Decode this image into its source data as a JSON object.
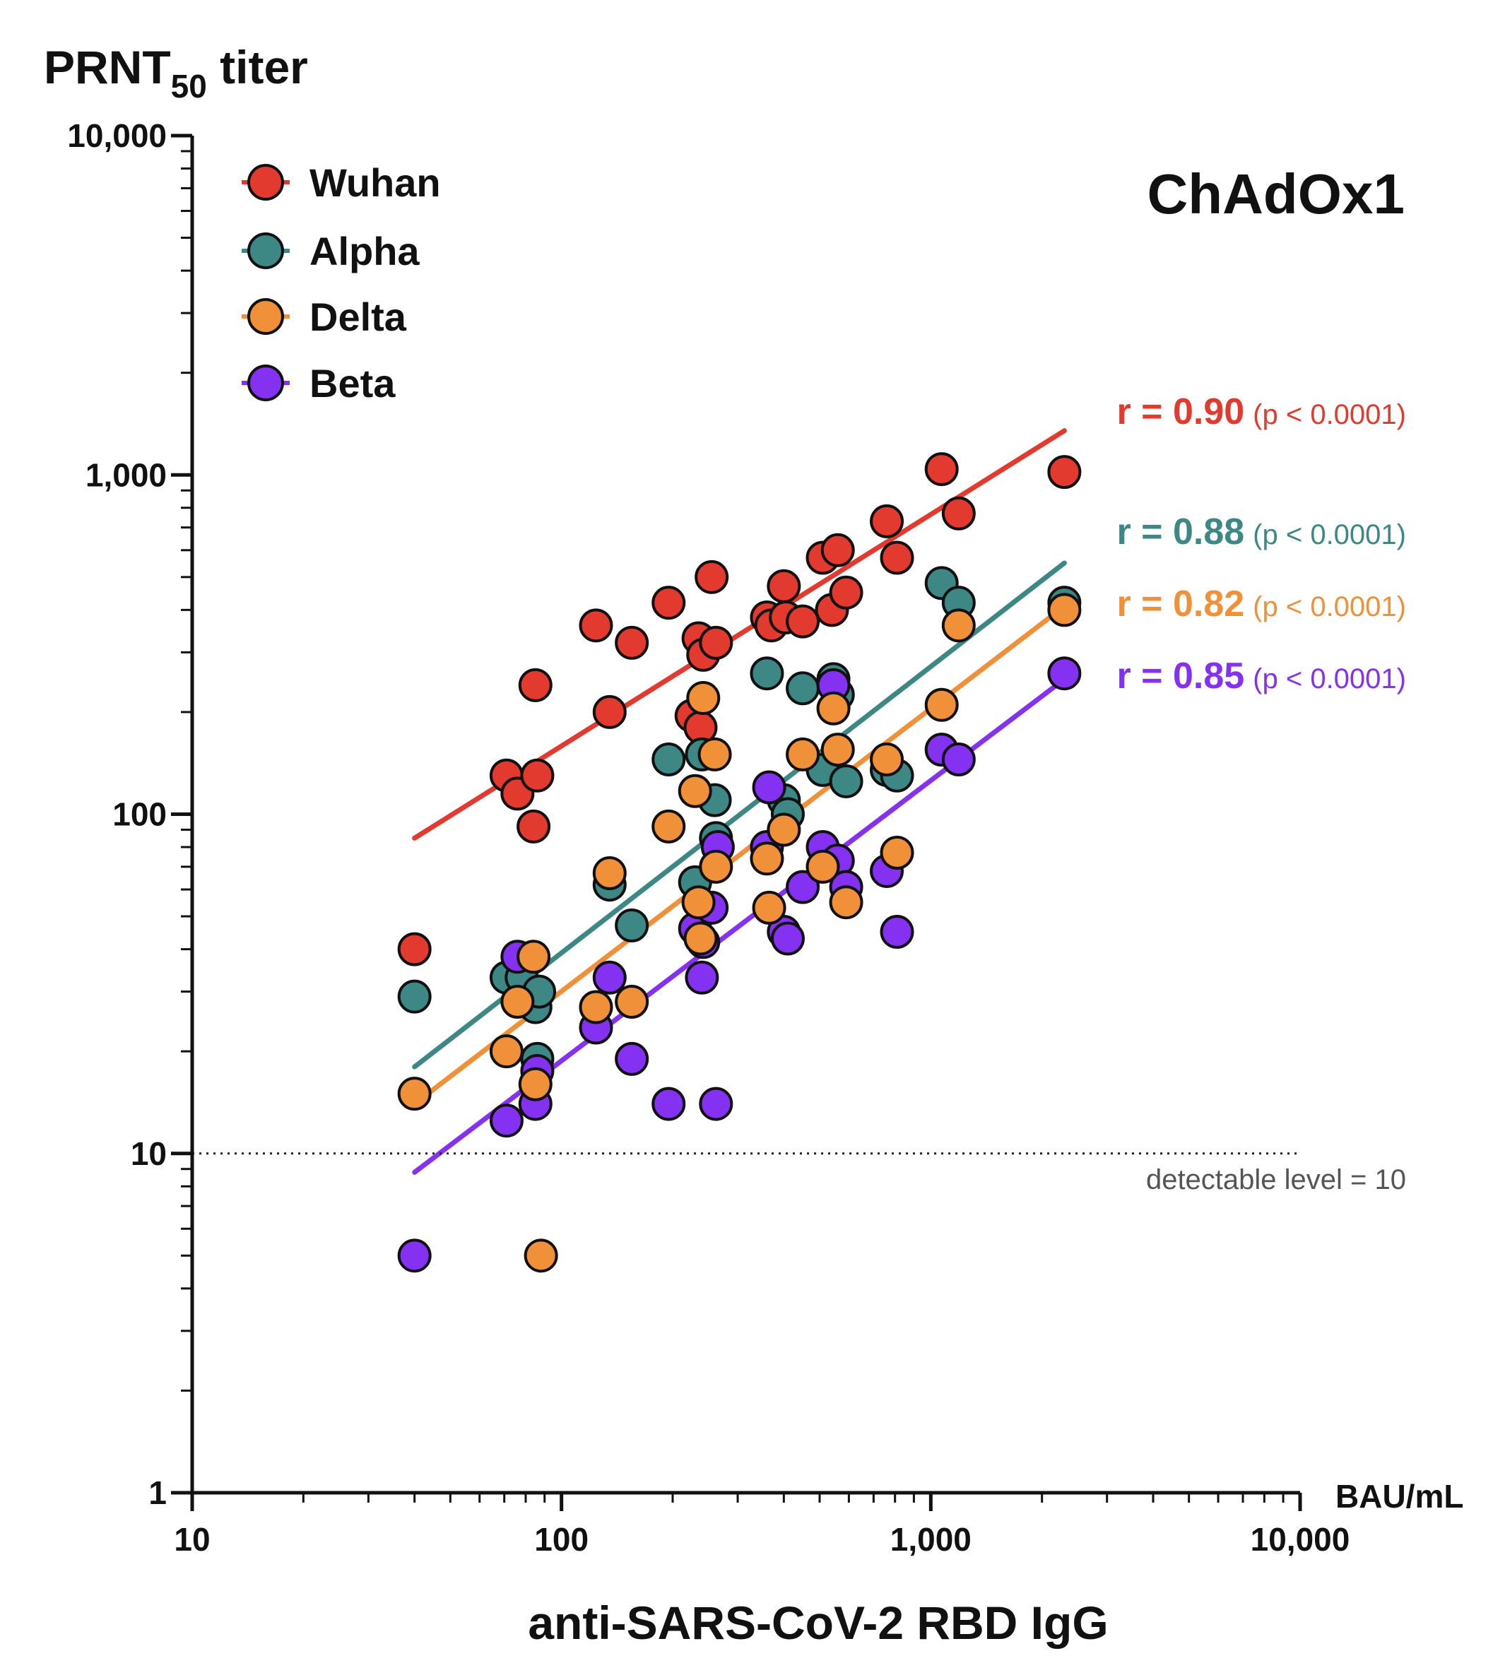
{
  "chart_data": {
    "type": "scatter",
    "title": "ChAdOx1",
    "ylabel": {
      "main": "PRNT",
      "sub": "50",
      "suffix": " titer"
    },
    "xlabel": "anti-SARS-CoV-2 RBD IgG",
    "xunit": "BAU/mL",
    "xscale": "log",
    "yscale": "log",
    "xlim": [
      10,
      10000
    ],
    "ylim": [
      1,
      10000
    ],
    "x_ticks": [
      {
        "value": 10,
        "label": "10"
      },
      {
        "value": 100,
        "label": "100"
      },
      {
        "value": 1000,
        "label": "1,000"
      },
      {
        "value": 10000,
        "label": "10,000"
      }
    ],
    "y_ticks": [
      {
        "value": 1,
        "label": "1"
      },
      {
        "value": 10,
        "label": "10"
      },
      {
        "value": 100,
        "label": "100"
      },
      {
        "value": 1000,
        "label": "1,000"
      },
      {
        "value": 10000,
        "label": "10,000"
      }
    ],
    "grid": false,
    "legend_position": "top-left",
    "reference_line": {
      "y": 10,
      "style": "dotted",
      "label": "detectable level = 10"
    },
    "series": [
      {
        "name": "Wuhan",
        "color": "#E23A2E",
        "stat": {
          "r": "r = 0.90",
          "p": "(p < 0.0001)"
        },
        "fit": [
          [
            40,
            85
          ],
          [
            2300,
            1350
          ]
        ],
        "points": [
          [
            40,
            40
          ],
          [
            71,
            130
          ],
          [
            76,
            115
          ],
          [
            84,
            92
          ],
          [
            85,
            240
          ],
          [
            86,
            130
          ],
          [
            124,
            360
          ],
          [
            135,
            200
          ],
          [
            155,
            320
          ],
          [
            195,
            420
          ],
          [
            225,
            195
          ],
          [
            235,
            330
          ],
          [
            238,
            180
          ],
          [
            242,
            295
          ],
          [
            255,
            500
          ],
          [
            262,
            320
          ],
          [
            360,
            380
          ],
          [
            370,
            360
          ],
          [
            400,
            470
          ],
          [
            405,
            380
          ],
          [
            450,
            370
          ],
          [
            510,
            570
          ],
          [
            540,
            400
          ],
          [
            560,
            600
          ],
          [
            590,
            450
          ],
          [
            760,
            730
          ],
          [
            810,
            570
          ],
          [
            1070,
            1040
          ],
          [
            1190,
            770
          ],
          [
            2300,
            1020
          ]
        ]
      },
      {
        "name": "Alpha",
        "color": "#3D8885",
        "stat": {
          "r": "r = 0.88",
          "p": "(p < 0.0001)"
        },
        "fit": [
          [
            40,
            18
          ],
          [
            2300,
            550
          ]
        ],
        "points": [
          [
            40,
            29
          ],
          [
            71,
            33
          ],
          [
            78,
            33
          ],
          [
            85,
            27
          ],
          [
            86,
            19
          ],
          [
            87,
            30
          ],
          [
            135,
            62
          ],
          [
            155,
            47
          ],
          [
            195,
            145
          ],
          [
            230,
            63
          ],
          [
            240,
            150
          ],
          [
            260,
            110
          ],
          [
            262,
            85
          ],
          [
            360,
            260
          ],
          [
            400,
            110
          ],
          [
            410,
            100
          ],
          [
            450,
            235
          ],
          [
            510,
            135
          ],
          [
            545,
            250
          ],
          [
            560,
            225
          ],
          [
            590,
            125
          ],
          [
            760,
            135
          ],
          [
            810,
            130
          ],
          [
            1070,
            480
          ],
          [
            1190,
            420
          ],
          [
            2300,
            420
          ]
        ]
      },
      {
        "name": "Delta",
        "color": "#F0913A",
        "stat": {
          "r": "r = 0.82",
          "p": "(p < 0.0001)"
        },
        "fit": [
          [
            40,
            14
          ],
          [
            2300,
            410
          ]
        ],
        "points": [
          [
            40,
            15
          ],
          [
            71,
            20
          ],
          [
            76,
            28
          ],
          [
            84,
            38
          ],
          [
            85,
            16
          ],
          [
            88,
            5
          ],
          [
            124,
            27
          ],
          [
            135,
            67
          ],
          [
            155,
            28
          ],
          [
            195,
            92
          ],
          [
            230,
            117
          ],
          [
            235,
            55
          ],
          [
            238,
            43
          ],
          [
            242,
            220
          ],
          [
            260,
            150
          ],
          [
            262,
            70
          ],
          [
            360,
            74
          ],
          [
            365,
            53
          ],
          [
            400,
            90
          ],
          [
            450,
            150
          ],
          [
            510,
            70
          ],
          [
            545,
            205
          ],
          [
            560,
            155
          ],
          [
            590,
            55
          ],
          [
            760,
            145
          ],
          [
            810,
            77
          ],
          [
            1070,
            210
          ],
          [
            1190,
            360
          ],
          [
            2300,
            400
          ]
        ]
      },
      {
        "name": "Beta",
        "color": "#8431F2",
        "stat": {
          "r": "r = 0.85",
          "p": "(p < 0.0001)"
        },
        "fit": [
          [
            40,
            8.8
          ],
          [
            2300,
            250
          ]
        ],
        "points": [
          [
            40,
            5
          ],
          [
            71,
            12.5
          ],
          [
            76,
            38
          ],
          [
            85,
            14
          ],
          [
            86,
            17.5
          ],
          [
            124,
            23.5
          ],
          [
            135,
            33
          ],
          [
            155,
            19
          ],
          [
            195,
            14
          ],
          [
            230,
            46
          ],
          [
            240,
            33
          ],
          [
            242,
            42
          ],
          [
            255,
            53
          ],
          [
            262,
            14
          ],
          [
            265,
            80
          ],
          [
            360,
            80
          ],
          [
            365,
            120
          ],
          [
            400,
            45
          ],
          [
            410,
            43
          ],
          [
            450,
            61
          ],
          [
            510,
            80
          ],
          [
            545,
            240
          ],
          [
            560,
            73
          ],
          [
            590,
            61
          ],
          [
            760,
            68
          ],
          [
            810,
            45
          ],
          [
            1070,
            155
          ],
          [
            1190,
            145
          ],
          [
            2300,
            260
          ]
        ]
      }
    ]
  }
}
